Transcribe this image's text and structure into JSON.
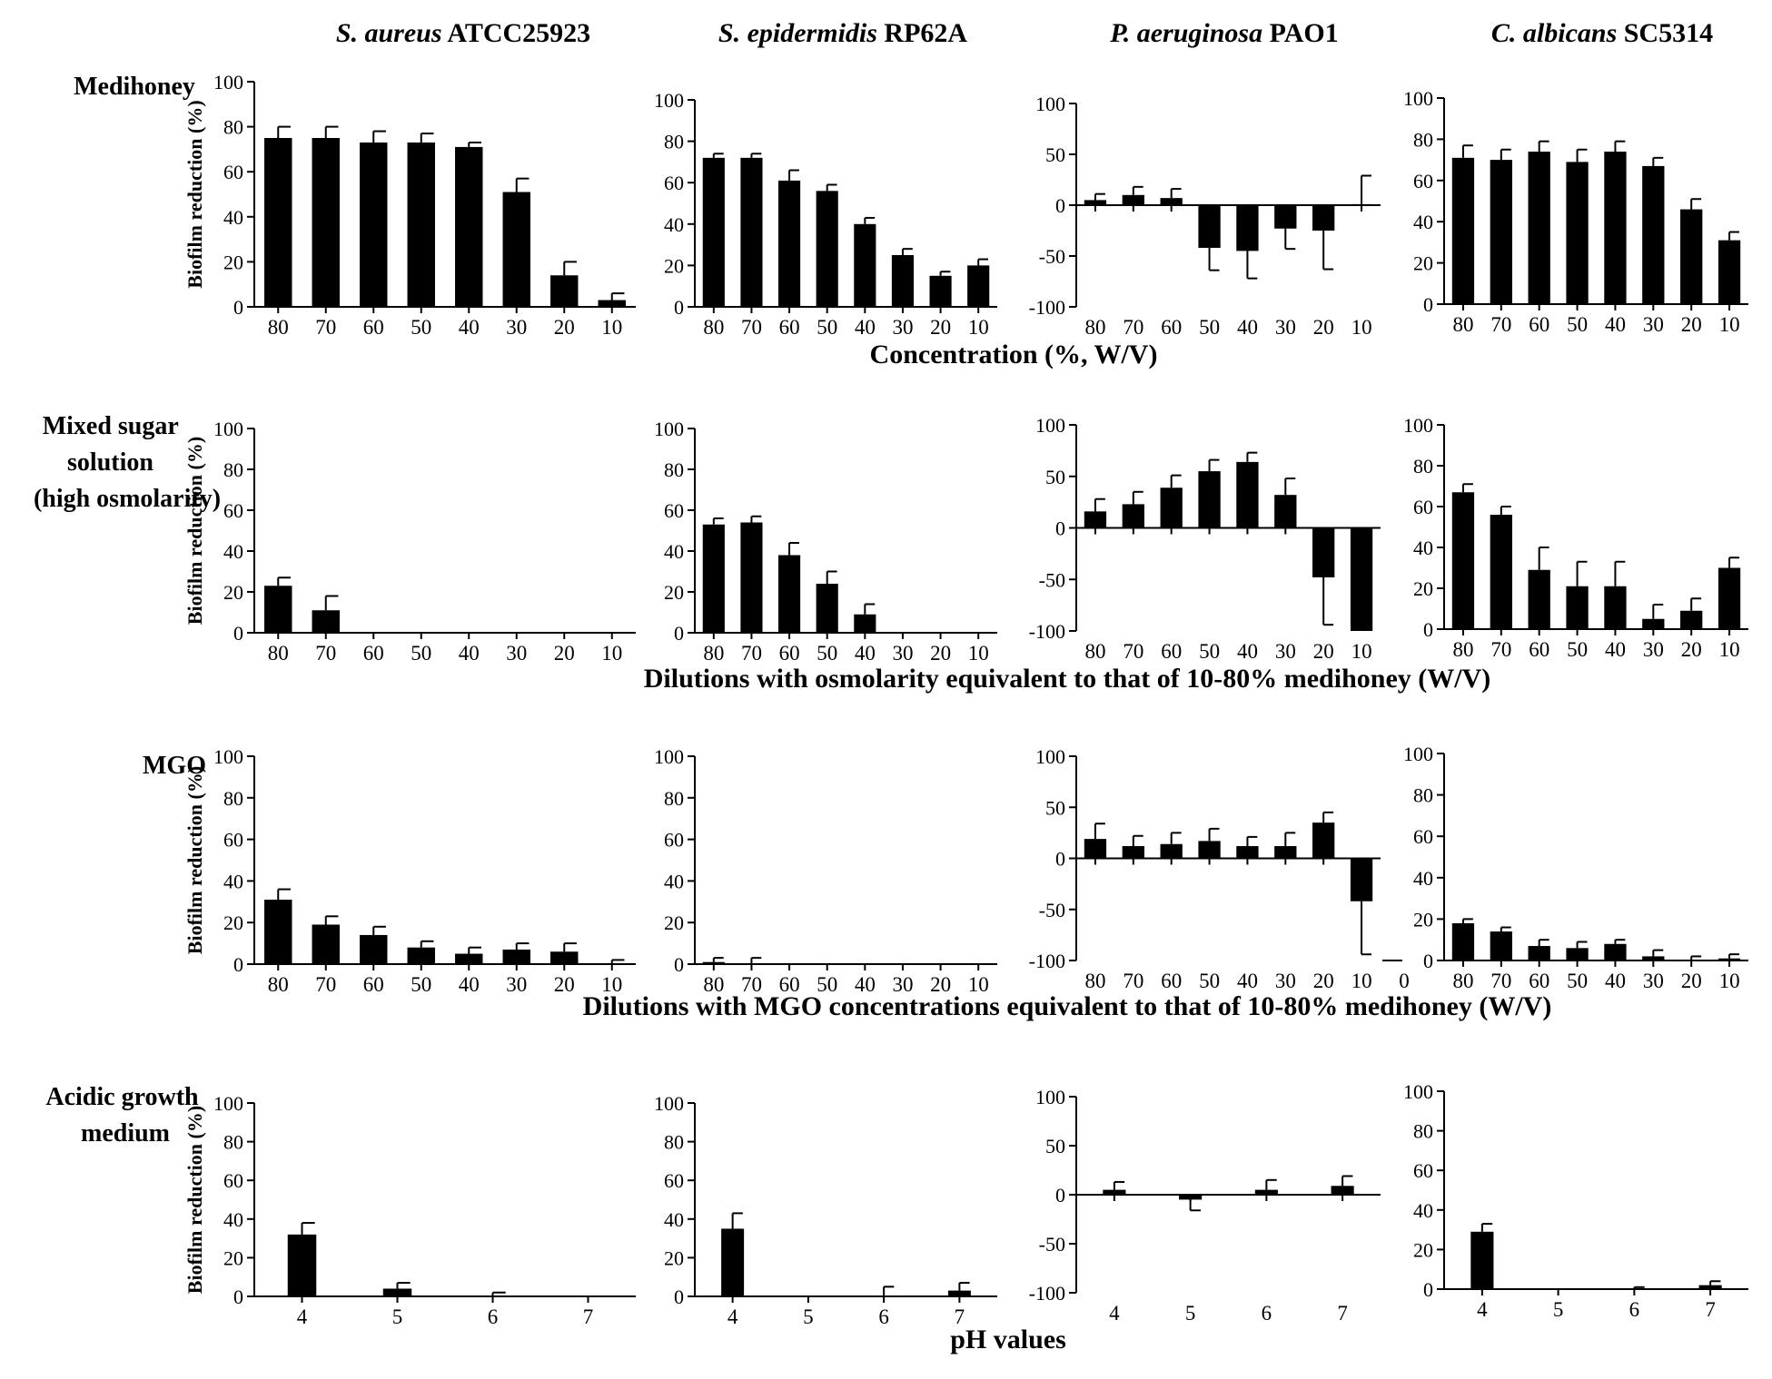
{
  "figure": {
    "column_titles": [
      {
        "species": "S. aureus",
        "strain": "ATCC25923"
      },
      {
        "species": "S. epidermidis",
        "strain": "RP62A"
      },
      {
        "species": "P. aeruginosa",
        "strain": "PAO1"
      },
      {
        "species": "C. albicans",
        "strain": "SC5314"
      }
    ],
    "row_labels": [
      [
        "Medihoney"
      ],
      [
        "Mixed sugar",
        "solution",
        "(high osmolarity)"
      ],
      [
        "MGO"
      ],
      [
        "Acidic growth",
        "medium"
      ]
    ],
    "row_captions": [
      "Concentration (%, W/V)",
      "Dilutions with osmolarity equivalent to that of 10-80% medihoney (W/V)",
      "Dilutions with MGO concentrations equivalent to that of 10-80% medihoney (W/V)",
      "pH values"
    ],
    "y_axis_label": "Biofilm reduction (%)"
  },
  "chart_data": [
    {
      "type": "bar",
      "row": 0,
      "col": 0,
      "title": "S. aureus ATCC25923 — Medihoney",
      "ylabel": "Biofilm reduction (%)",
      "xlabel": "Concentration (%, W/V)",
      "ylim": [
        0,
        100
      ],
      "yticks": [
        0,
        20,
        40,
        60,
        80,
        100
      ],
      "categories": [
        "80",
        "70",
        "60",
        "50",
        "40",
        "30",
        "20",
        "10"
      ],
      "values": [
        75,
        75,
        73,
        73,
        71,
        51,
        14,
        3
      ],
      "errors": [
        5,
        5,
        5,
        4,
        2,
        6,
        6,
        3
      ]
    },
    {
      "type": "bar",
      "row": 0,
      "col": 1,
      "title": "S. epidermidis RP62A — Medihoney",
      "ylabel": "",
      "xlabel": "Concentration (%, W/V)",
      "ylim": [
        0,
        100
      ],
      "yticks": [
        0,
        20,
        40,
        60,
        80,
        100
      ],
      "categories": [
        "80",
        "70",
        "60",
        "50",
        "40",
        "30",
        "20",
        "10"
      ],
      "values": [
        72,
        72,
        61,
        56,
        40,
        25,
        15,
        20
      ],
      "errors": [
        2,
        2,
        5,
        3,
        3,
        3,
        2,
        3
      ]
    },
    {
      "type": "bar",
      "row": 0,
      "col": 2,
      "title": "P. aeruginosa PAO1 — Medihoney",
      "ylabel": "",
      "xlabel": "Concentration (%, W/V)",
      "ylim": [
        -100,
        100
      ],
      "yticks": [
        -100,
        -50,
        0,
        50,
        100
      ],
      "categories": [
        "80",
        "70",
        "60",
        "50",
        "40",
        "30",
        "20",
        "10"
      ],
      "values": [
        5,
        10,
        7,
        -42,
        -45,
        -23,
        -25,
        1
      ],
      "errors": [
        6,
        8,
        9,
        22,
        27,
        20,
        38,
        28
      ]
    },
    {
      "type": "bar",
      "row": 0,
      "col": 3,
      "title": "C. albicans SC5314 — Medihoney",
      "ylabel": "",
      "xlabel": "Concentration (%, W/V)",
      "ylim": [
        0,
        100
      ],
      "yticks": [
        0,
        20,
        40,
        60,
        80,
        100
      ],
      "categories": [
        "80",
        "70",
        "60",
        "50",
        "40",
        "30",
        "20",
        "10"
      ],
      "values": [
        71,
        70,
        74,
        69,
        74,
        67,
        46,
        31
      ],
      "errors": [
        6,
        5,
        5,
        6,
        5,
        4,
        5,
        4
      ]
    },
    {
      "type": "bar",
      "row": 1,
      "col": 0,
      "title": "S. aureus ATCC25923 — Mixed sugar solution",
      "ylabel": "Biofilm reduction (%)",
      "xlabel": "Dilutions with osmolarity equivalent to that of 10-80% medihoney (W/V)",
      "ylim": [
        0,
        100
      ],
      "yticks": [
        0,
        20,
        40,
        60,
        80,
        100
      ],
      "categories": [
        "80",
        "70",
        "60",
        "50",
        "40",
        "30",
        "20",
        "10"
      ],
      "values": [
        23,
        11,
        0,
        0,
        0,
        0,
        0,
        0
      ],
      "errors": [
        4,
        7,
        0,
        0,
        0,
        0,
        0,
        0
      ]
    },
    {
      "type": "bar",
      "row": 1,
      "col": 1,
      "title": "S. epidermidis RP62A — Mixed sugar solution",
      "ylabel": "",
      "xlabel": "Dilutions with osmolarity equivalent to that of 10-80% medihoney (W/V)",
      "ylim": [
        0,
        100
      ],
      "yticks": [
        0,
        20,
        40,
        60,
        80,
        100
      ],
      "categories": [
        "80",
        "70",
        "60",
        "50",
        "40",
        "30",
        "20",
        "10"
      ],
      "values": [
        53,
        54,
        38,
        24,
        9,
        0,
        0,
        0
      ],
      "errors": [
        3,
        3,
        6,
        6,
        5,
        0,
        0,
        0
      ]
    },
    {
      "type": "bar",
      "row": 1,
      "col": 2,
      "title": "P. aeruginosa PAO1 — Mixed sugar solution",
      "ylabel": "",
      "xlabel": "Dilutions with osmolarity equivalent to that of 10-80% medihoney (W/V)",
      "ylim": [
        -100,
        100
      ],
      "yticks": [
        -100,
        -50,
        0,
        50,
        100
      ],
      "categories": [
        "80",
        "70",
        "60",
        "50",
        "40",
        "30",
        "20",
        "10"
      ],
      "values": [
        16,
        23,
        39,
        55,
        64,
        32,
        -48,
        -100
      ],
      "errors": [
        12,
        12,
        12,
        11,
        9,
        16,
        46,
        0
      ]
    },
    {
      "type": "bar",
      "row": 1,
      "col": 3,
      "title": "C. albicans SC5314 — Mixed sugar solution",
      "ylabel": "",
      "xlabel": "Dilutions with osmolarity equivalent to that of 10-80% medihoney (W/V)",
      "ylim": [
        0,
        100
      ],
      "yticks": [
        0,
        20,
        40,
        60,
        80,
        100
      ],
      "categories": [
        "80",
        "70",
        "60",
        "50",
        "40",
        "30",
        "20",
        "10"
      ],
      "values": [
        67,
        56,
        29,
        21,
        21,
        5,
        9,
        30
      ],
      "errors": [
        4,
        4,
        11,
        12,
        12,
        7,
        6,
        5
      ]
    },
    {
      "type": "bar",
      "row": 2,
      "col": 0,
      "title": "S. aureus ATCC25923 — MGO",
      "ylabel": "Biofilm reduction (%)",
      "xlabel": "Dilutions with MGO concentrations equivalent to that of 10-80% medihoney (W/V)",
      "ylim": [
        0,
        100
      ],
      "yticks": [
        0,
        20,
        40,
        60,
        80,
        100
      ],
      "categories": [
        "80",
        "70",
        "60",
        "50",
        "40",
        "30",
        "20",
        "10"
      ],
      "values": [
        31,
        19,
        14,
        8,
        5,
        7,
        6,
        0
      ],
      "errors": [
        5,
        4,
        4,
        3,
        3,
        3,
        4,
        2
      ]
    },
    {
      "type": "bar",
      "row": 2,
      "col": 1,
      "title": "S. epidermidis RP62A — MGO",
      "ylabel": "",
      "xlabel": "Dilutions with MGO concentrations equivalent to that of 10-80% medihoney (W/V)",
      "ylim": [
        0,
        100
      ],
      "yticks": [
        0,
        20,
        40,
        60,
        80,
        100
      ],
      "categories": [
        "80",
        "70",
        "60",
        "50",
        "40",
        "30",
        "20",
        "10"
      ],
      "values": [
        1,
        0,
        0,
        0,
        0,
        0,
        0,
        0
      ],
      "errors": [
        2,
        3,
        0,
        0,
        0,
        0,
        0,
        0
      ]
    },
    {
      "type": "bar",
      "row": 2,
      "col": 2,
      "title": "P. aeruginosa PAO1 — MGO",
      "ylabel": "",
      "xlabel": "Dilutions with MGO concentrations equivalent to that of 10-80% medihoney (W/V)",
      "ylim": [
        -100,
        100
      ],
      "yticks": [
        -100,
        -50,
        0,
        50,
        100
      ],
      "categories": [
        "80",
        "70",
        "60",
        "50",
        "40",
        "30",
        "20",
        "10"
      ],
      "values": [
        19,
        12,
        14,
        17,
        12,
        12,
        35,
        -42
      ],
      "errors": [
        15,
        10,
        11,
        12,
        9,
        13,
        10,
        52
      ],
      "extra_tick": "0"
    },
    {
      "type": "bar",
      "row": 2,
      "col": 3,
      "title": "C. albicans SC5314 — MGO",
      "ylabel": "",
      "xlabel": "Dilutions with MGO concentrations equivalent to that of 10-80% medihoney (W/V)",
      "ylim": [
        0,
        100
      ],
      "yticks": [
        0,
        20,
        40,
        60,
        80,
        100
      ],
      "categories": [
        "80",
        "70",
        "60",
        "50",
        "40",
        "30",
        "20",
        "10"
      ],
      "values": [
        18,
        14,
        7,
        6,
        8,
        2,
        0,
        1
      ],
      "errors": [
        2,
        2,
        3,
        3,
        2,
        3,
        2,
        2
      ]
    },
    {
      "type": "bar",
      "row": 3,
      "col": 0,
      "title": "S. aureus ATCC25923 — Acidic growth medium",
      "ylabel": "Biofilm reduction (%)",
      "xlabel": "pH values",
      "ylim": [
        0,
        100
      ],
      "yticks": [
        0,
        20,
        40,
        60,
        80,
        100
      ],
      "categories": [
        "4",
        "5",
        "6",
        "7"
      ],
      "values": [
        32,
        4,
        0,
        0
      ],
      "errors": [
        6,
        3,
        2,
        0
      ]
    },
    {
      "type": "bar",
      "row": 3,
      "col": 1,
      "title": "S. epidermidis RP62A — Acidic growth medium",
      "ylabel": "",
      "xlabel": "pH values",
      "ylim": [
        0,
        100
      ],
      "yticks": [
        0,
        20,
        40,
        60,
        80,
        100
      ],
      "categories": [
        "4",
        "5",
        "6",
        "7"
      ],
      "values": [
        35,
        0,
        0,
        3
      ],
      "errors": [
        8,
        0,
        5,
        4
      ]
    },
    {
      "type": "bar",
      "row": 3,
      "col": 2,
      "title": "P. aeruginosa PAO1 — Acidic growth medium",
      "ylabel": "",
      "xlabel": "pH values",
      "ylim": [
        -100,
        100
      ],
      "yticks": [
        -100,
        -50,
        0,
        50,
        100
      ],
      "categories": [
        "4",
        "5",
        "6",
        "7"
      ],
      "values": [
        5,
        -5,
        5,
        9
      ],
      "errors": [
        8,
        11,
        10,
        10
      ]
    },
    {
      "type": "bar",
      "row": 3,
      "col": 3,
      "title": "C. albicans SC5314 — Acidic growth medium",
      "ylabel": "",
      "xlabel": "pH values",
      "ylim": [
        0,
        100
      ],
      "yticks": [
        0,
        20,
        40,
        60,
        80,
        100
      ],
      "categories": [
        "4",
        "5",
        "6",
        "7"
      ],
      "values": [
        29,
        0,
        0,
        2
      ],
      "errors": [
        4,
        0,
        1,
        2
      ]
    }
  ]
}
